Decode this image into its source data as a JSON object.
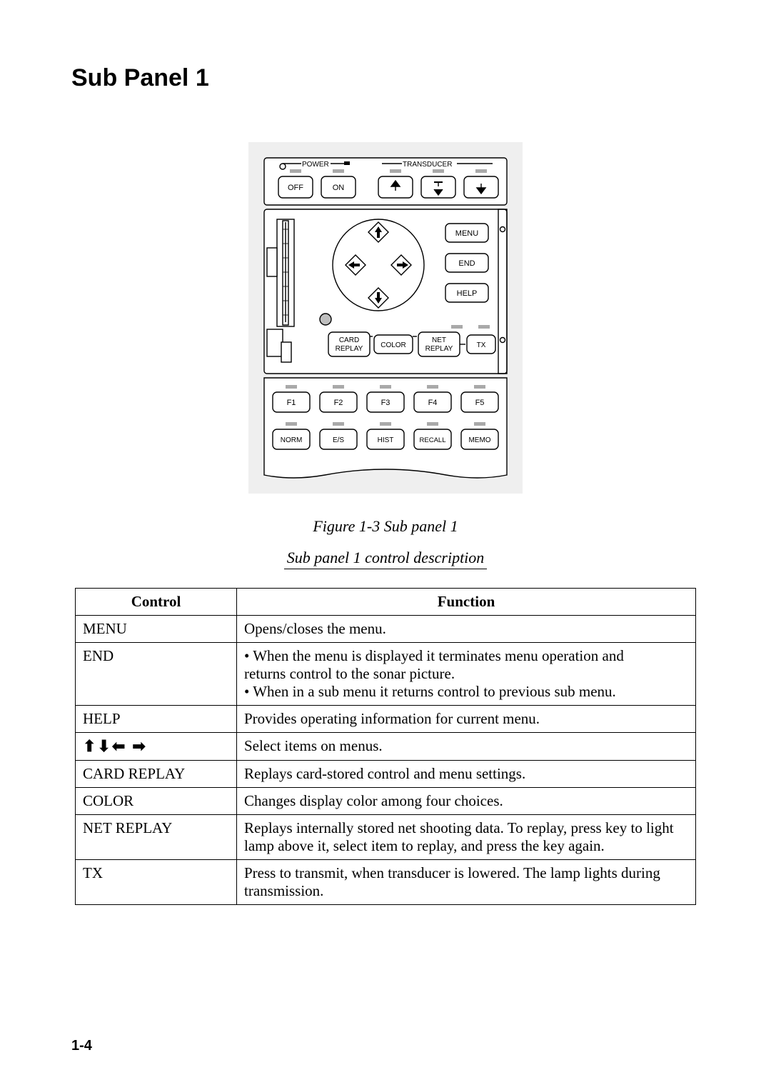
{
  "title": "Sub Panel 1",
  "figure_caption": "Figure 1-3 Sub panel 1",
  "sub_caption": "Sub panel 1 control description",
  "page_number": "1-4",
  "panel": {
    "background": "#efefef",
    "stroke": "#000000",
    "font": "Arial",
    "labels": {
      "power": "POWER",
      "transducer": "TRANSDUCER",
      "off": "OFF",
      "on": "ON",
      "menu": "MENU",
      "end": "END",
      "help": "HELP",
      "card_replay_1": "CARD",
      "card_replay_2": "REPLAY",
      "color": "COLOR",
      "net_replay_1": "NET",
      "net_replay_2": "REPLAY",
      "tx": "TX",
      "f1": "F1",
      "f2": "F2",
      "f3": "F3",
      "f4": "F4",
      "f5": "F5",
      "norm": "NORM",
      "es": "E/S",
      "hist": "HIST",
      "recall": "RECALL",
      "memo": "MEMO"
    }
  },
  "table": {
    "headers": {
      "control": "Control",
      "function": "Function"
    },
    "rows": [
      {
        "control": "MENU",
        "function": "Opens/closes the menu."
      },
      {
        "control": "END",
        "function": "• When the menu is displayed it terminates menu operation and\n  returns control to the sonar picture.\n• When in a sub menu it returns control to previous sub menu."
      },
      {
        "control": "HELP",
        "function": "Provides operating information for current menu."
      },
      {
        "control": "__ARROWS__",
        "function": "Select items on menus."
      },
      {
        "control": "CARD REPLAY",
        "function": "Replays card-stored control and menu settings."
      },
      {
        "control": "COLOR",
        "function": "Changes display color among four choices."
      },
      {
        "control": "NET REPLAY",
        "function": "Replays internally stored net shooting data. To replay, press key to light lamp above it, select item to replay, and press the key again."
      },
      {
        "control": "TX",
        "function": "Press to transmit, when transducer is lowered. The lamp lights during transmission."
      }
    ]
  }
}
